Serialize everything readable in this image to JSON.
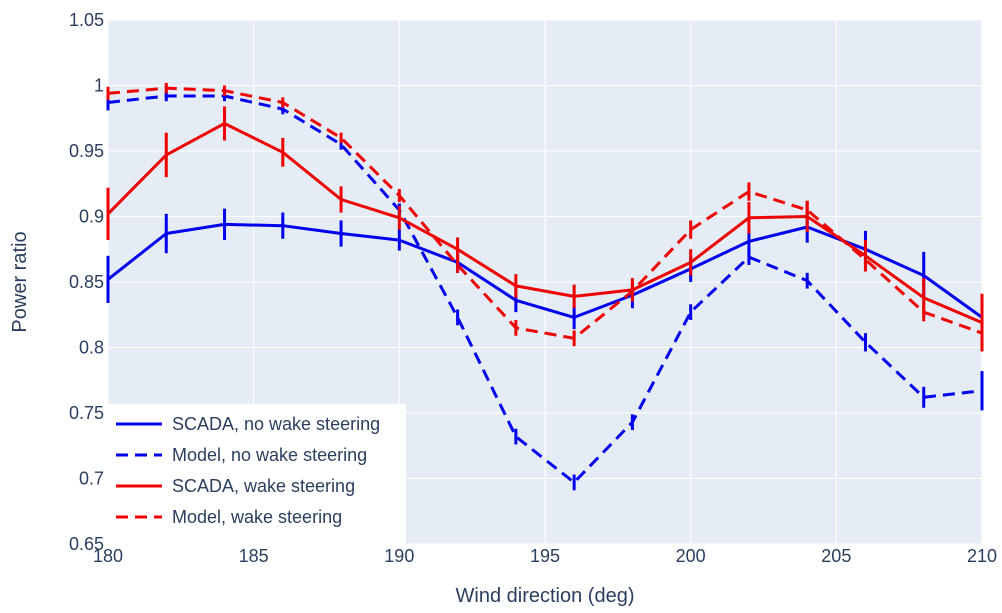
{
  "chart_data": {
    "type": "line",
    "title": "",
    "xlabel": "Wind direction (deg)",
    "ylabel": "Power ratio",
    "xlim": [
      180,
      210
    ],
    "ylim": [
      0.65,
      1.05
    ],
    "x_ticks": [
      180,
      185,
      190,
      195,
      200,
      205,
      210
    ],
    "x_tick_labels": [
      "180",
      "185",
      "190",
      "195",
      "200",
      "205",
      "210"
    ],
    "y_ticks": [
      0.65,
      0.7,
      0.75,
      0.8,
      0.85,
      0.9,
      0.95,
      1,
      1.05
    ],
    "y_tick_labels": [
      "0.65",
      "0.7",
      "0.75",
      "0.8",
      "0.85",
      "0.9",
      "0.95",
      "1",
      "1.05"
    ],
    "grid": true,
    "legend_position": "bottom-left",
    "plot_background": "#e5ecf6",
    "grid_color": "#ffffff",
    "text_color": "#2a3f5f",
    "x": [
      180,
      182,
      184,
      186,
      188,
      190,
      192,
      194,
      196,
      198,
      200,
      202,
      204,
      206,
      208,
      210
    ],
    "series": [
      {
        "name": "SCADA, no wake steering",
        "color": "#0000ee",
        "dash": "solid",
        "values": [
          0.852,
          0.887,
          0.894,
          0.893,
          0.887,
          0.882,
          0.865,
          0.836,
          0.823,
          0.84,
          0.86,
          0.881,
          0.892,
          0.875,
          0.855,
          0.823
        ],
        "errors": [
          0.018,
          0.015,
          0.012,
          0.01,
          0.01,
          0.008,
          0.008,
          0.009,
          0.009,
          0.01,
          0.01,
          0.011,
          0.012,
          0.014,
          0.018,
          0.015
        ]
      },
      {
        "name": "Model, no wake steering",
        "color": "#0000ee",
        "dash": "dashed",
        "values": [
          0.987,
          0.992,
          0.992,
          0.982,
          0.955,
          0.905,
          0.823,
          0.732,
          0.697,
          0.743,
          0.827,
          0.869,
          0.851,
          0.804,
          0.762,
          0.767
        ],
        "errors": [
          0.006,
          0.004,
          0.004,
          0.004,
          0.004,
          0.005,
          0.006,
          0.006,
          0.006,
          0.006,
          0.006,
          0.006,
          0.006,
          0.007,
          0.008,
          0.015
        ]
      },
      {
        "name": "SCADA, wake steering",
        "color": "#ee0000",
        "dash": "solid",
        "values": [
          0.902,
          0.947,
          0.971,
          0.949,
          0.913,
          0.899,
          0.875,
          0.847,
          0.839,
          0.844,
          0.865,
          0.899,
          0.9,
          0.87,
          0.838,
          0.819
        ],
        "errors": [
          0.02,
          0.017,
          0.013,
          0.011,
          0.01,
          0.009,
          0.009,
          0.009,
          0.009,
          0.009,
          0.01,
          0.012,
          0.012,
          0.012,
          0.015,
          0.022
        ]
      },
      {
        "name": "Model, wake steering",
        "color": "#ee0000",
        "dash": "dashed",
        "values": [
          0.994,
          0.998,
          0.996,
          0.987,
          0.96,
          0.916,
          0.863,
          0.815,
          0.807,
          0.843,
          0.89,
          0.919,
          0.905,
          0.867,
          0.827,
          0.811
        ],
        "errors": [
          0.005,
          0.004,
          0.004,
          0.004,
          0.004,
          0.005,
          0.006,
          0.006,
          0.006,
          0.006,
          0.007,
          0.007,
          0.007,
          0.007,
          0.007,
          0.008
        ]
      }
    ]
  }
}
